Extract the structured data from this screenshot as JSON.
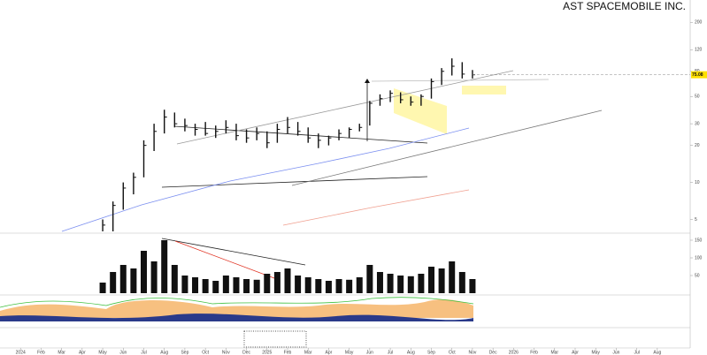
{
  "chart_data": {
    "type": "ohlc",
    "title": "AST SPACEMOBILE INC.",
    "x": [
      4,
      4.5,
      5,
      5.5,
      6,
      6.5,
      7,
      7.5,
      8,
      8.5,
      9,
      9.5,
      10,
      10.5,
      11,
      11.5,
      12,
      12.5,
      13,
      13.5,
      14,
      14.5,
      15,
      15.5,
      16,
      16.5,
      17,
      17.5,
      18,
      18.5,
      19,
      19.5,
      20,
      20.5,
      21,
      21.5,
      22
    ],
    "high": [
      5,
      7,
      10,
      12,
      22,
      30,
      39,
      37,
      33,
      30,
      31,
      29,
      32,
      30,
      27,
      28,
      26,
      30,
      34,
      31,
      28,
      25,
      24,
      27,
      28,
      30,
      46,
      52,
      56,
      54,
      50,
      52,
      70,
      85,
      102,
      95,
      82
    ],
    "low": [
      3.5,
      4,
      6,
      8,
      11,
      18,
      25,
      28,
      26,
      24,
      24,
      23,
      25,
      22,
      21,
      22,
      19,
      21,
      25,
      24,
      21,
      19,
      20,
      22,
      23,
      26,
      29,
      42,
      45,
      44,
      42,
      42,
      48,
      62,
      74,
      70,
      70
    ],
    "close": [
      4.5,
      6.5,
      9,
      11,
      20,
      26,
      34,
      30,
      29,
      27,
      25,
      26,
      28,
      24,
      23,
      25,
      21,
      27,
      28,
      26,
      23,
      22,
      23,
      25,
      27,
      28,
      44,
      48,
      53,
      47,
      45,
      50,
      66,
      80,
      88,
      76,
      75
    ],
    "volume": [
      30,
      60,
      80,
      70,
      120,
      90,
      150,
      80,
      50,
      45,
      40,
      35,
      50,
      45,
      40,
      38,
      55,
      60,
      70,
      50,
      45,
      40,
      35,
      40,
      38,
      45,
      80,
      60,
      55,
      50,
      48,
      55,
      75,
      70,
      90,
      60,
      40
    ],
    "color": "#111111",
    "last_price": 75.08,
    "log_scale": true,
    "xlim": [
      -1,
      32.6
    ],
    "xticks": [
      {
        "value": 0,
        "label": "2024"
      },
      {
        "value": 1,
        "label": "Feb"
      },
      {
        "value": 2,
        "label": "Mar"
      },
      {
        "value": 3,
        "label": "Apr"
      },
      {
        "value": 4,
        "label": "May"
      },
      {
        "value": 5,
        "label": "Jun"
      },
      {
        "value": 6,
        "label": "Jul"
      },
      {
        "value": 7,
        "label": "Aug"
      },
      {
        "value": 8,
        "label": "Sep"
      },
      {
        "value": 9,
        "label": "Oct"
      },
      {
        "value": 10,
        "label": "Nov"
      },
      {
        "value": 11,
        "label": "Dec"
      },
      {
        "value": 12,
        "label": "2025"
      },
      {
        "value": 13,
        "label": "Feb"
      },
      {
        "value": 14,
        "label": "Mar"
      },
      {
        "value": 15,
        "label": "Apr"
      },
      {
        "value": 16,
        "label": "May"
      },
      {
        "value": 17,
        "label": "Jun"
      },
      {
        "value": 18,
        "label": "Jul"
      },
      {
        "value": 19,
        "label": "Aug"
      },
      {
        "value": 20,
        "label": "Sep"
      },
      {
        "value": 21,
        "label": "Oct"
      },
      {
        "value": 22,
        "label": "Nov"
      },
      {
        "value": 23,
        "label": "Dec"
      },
      {
        "value": 24,
        "label": "2026"
      },
      {
        "value": 25,
        "label": "Feb"
      },
      {
        "value": 26,
        "label": "Mar"
      },
      {
        "value": 27,
        "label": "Apr"
      },
      {
        "value": 28,
        "label": "May"
      },
      {
        "value": 29,
        "label": "Jun"
      },
      {
        "value": 30,
        "label": "Jul"
      },
      {
        "value": 31,
        "label": "Aug"
      }
    ],
    "ylim": [
      4,
      280
    ],
    "yticks": [
      5,
      10,
      20,
      30,
      50,
      80,
      120,
      200
    ],
    "vol_ylim": [
      0,
      160
    ],
    "vol_yticks": [
      50,
      100,
      150
    ]
  }
}
